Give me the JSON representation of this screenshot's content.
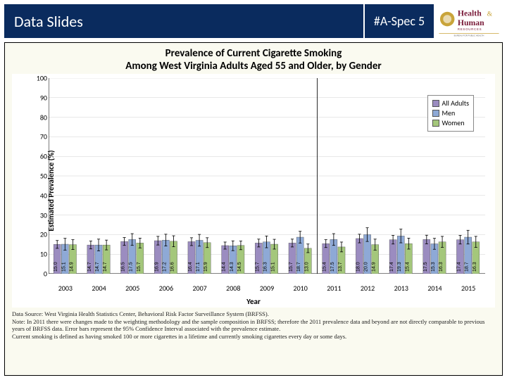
{
  "header": {
    "left_label": "Data Slides",
    "right_label": "#A-Spec 5",
    "logo_text_top": "Health",
    "logo_text_amp": "&",
    "logo_text_bot": "Human",
    "logo_sub": "RESOURCES"
  },
  "chart": {
    "type": "bar-grouped-with-error",
    "title_line1": "Prevalence of Current Cigarette Smoking",
    "title_line2": "Among West Virginia Adults Aged 55 and Older, by Gender",
    "ylabel": "Estimated Prevalence (%)",
    "xlabel": "Year",
    "ylim": [
      0,
      100
    ],
    "ytick_step": 10,
    "yticks": [
      0,
      10,
      20,
      30,
      40,
      50,
      60,
      70,
      80,
      90,
      100
    ],
    "categories": [
      "2003",
      "2004",
      "2005",
      "2006",
      "2007",
      "2008",
      "2009",
      "2010",
      "2011",
      "2012",
      "2013",
      "2014",
      "2015"
    ],
    "series": [
      {
        "name": "All Adults",
        "color": "#9b8cc0",
        "values": [
          15.0,
          14.7,
          16.5,
          16.9,
          16.4,
          14.4,
          15.7,
          15.7,
          15.4,
          18.0,
          17.4,
          17.5,
          17.4
        ],
        "err": [
          2.0,
          2.0,
          2.0,
          2.2,
          2.0,
          1.8,
          2.0,
          2.0,
          2.0,
          2.2,
          2.2,
          2.2,
          2.2
        ]
      },
      {
        "name": "Men",
        "color": "#8ea9d6",
        "values": [
          15.1,
          14.7,
          17.5,
          17.2,
          17.1,
          14.3,
          16.3,
          18.7,
          17.5,
          20.0,
          19.3,
          15.3,
          18.7
        ],
        "err": [
          3.0,
          3.0,
          3.0,
          3.0,
          3.0,
          2.5,
          3.0,
          3.0,
          3.0,
          3.5,
          3.5,
          2.8,
          3.5
        ]
      },
      {
        "name": "Women",
        "color": "#a4c77b",
        "values": [
          14.9,
          14.7,
          15.7,
          16.6,
          15.9,
          14.5,
          15.1,
          13.0,
          13.7,
          14.9,
          15.4,
          16.3,
          16.3
        ],
        "err": [
          2.5,
          2.5,
          2.5,
          2.8,
          2.5,
          2.2,
          2.5,
          2.2,
          2.5,
          2.8,
          2.8,
          2.8,
          2.8
        ]
      }
    ],
    "grid_color": "#d0d0d0",
    "axis_color": "#000000",
    "bg_color": "#ffffff",
    "bar_group_width": 0.7,
    "label_fontsize": 11,
    "tick_fontsize": 10,
    "title_fontsize": 15,
    "legend_pos": "top-right",
    "divider_after_index": 7
  },
  "footnote": {
    "line1": "Data Source: West Virginia Health Statistics Center, Behavioral Risk Factor Surveillance System (BRFSS).",
    "line2": "Note: In 2011 there were changes made to the weighting methodology and the sample composition in BRFSS; therefore the 2011 prevalence data and beyond are not directly comparable to previous years of BRFSS data. Error bars represent the 95% Confidence Interval associated with the prevalence estimate.",
    "line3": "Current smoking is defined as having smoked 100 or more cigarettes in a lifetime and currently smoking cigarettes every day or some days."
  }
}
